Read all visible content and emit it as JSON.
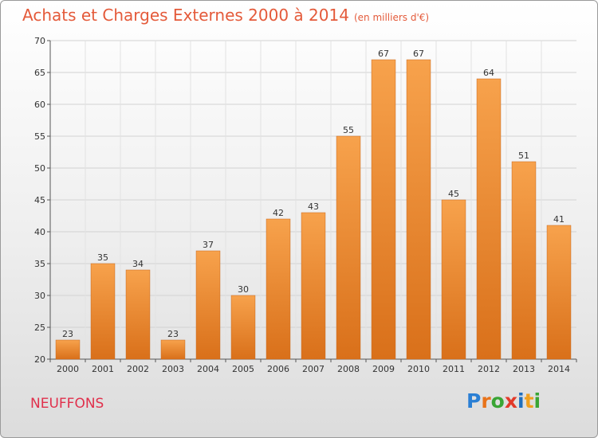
{
  "header": {
    "title": "Achats et Charges Externes 2000 à 2014",
    "subtitle": "(en milliers d'€)"
  },
  "place": "NEUFFONS",
  "logo": {
    "letters": [
      "P",
      "r",
      "o",
      "x",
      "i",
      "t",
      "i"
    ],
    "colors": [
      "#2a7fd4",
      "#e8731a",
      "#3aa535",
      "#e23a2a",
      "#1f6fbf",
      "#f0a020",
      "#3aa535"
    ]
  },
  "chart_data": {
    "type": "bar",
    "title": "Achats et Charges Externes 2000 à 2014",
    "subtitle": "(en milliers d'€)",
    "categories": [
      "2000",
      "2001",
      "2002",
      "2003",
      "2004",
      "2005",
      "2006",
      "2007",
      "2008",
      "2009",
      "2010",
      "2011",
      "2012",
      "2013",
      "2014"
    ],
    "values": [
      23,
      35,
      34,
      23,
      37,
      30,
      42,
      43,
      55,
      67,
      67,
      45,
      64,
      51,
      41
    ],
    "ylim": [
      20,
      70
    ],
    "yticks": [
      20,
      25,
      30,
      35,
      40,
      45,
      50,
      55,
      60,
      65,
      70
    ],
    "grid": true,
    "bar_color": "#f0902c"
  }
}
